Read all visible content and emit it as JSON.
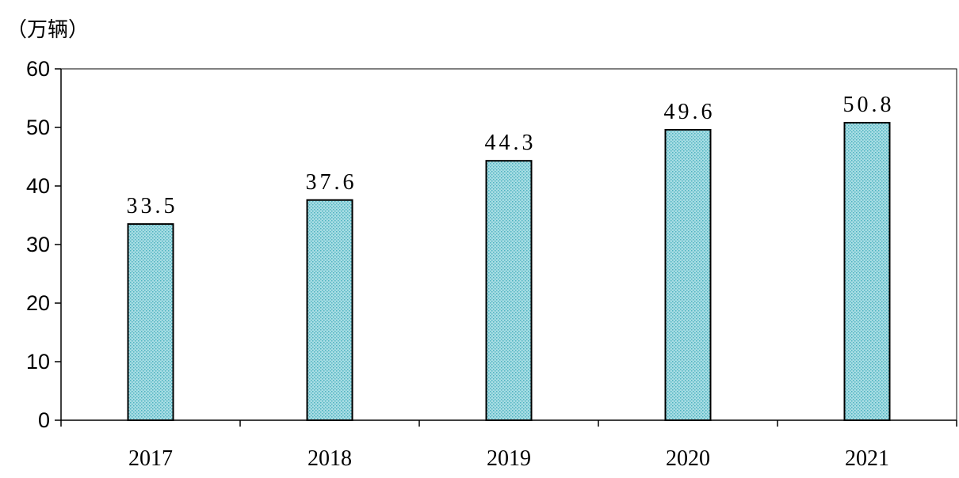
{
  "chart_data": {
    "type": "bar",
    "unit_label": "（万辆）",
    "categories": [
      "2017",
      "2018",
      "2019",
      "2020",
      "2021"
    ],
    "values": [
      33.5,
      37.6,
      44.3,
      49.6,
      50.8
    ],
    "data_labels": [
      "33.5",
      "37.6",
      "44.3",
      "49.6",
      "50.8"
    ],
    "yticks": [
      "0",
      "10",
      "20",
      "30",
      "40",
      "50",
      "60"
    ],
    "ylim": [
      0,
      60
    ],
    "grid": false,
    "colors": {
      "bar_fill": "#a8dde4",
      "bar_dot": "#4fb3c0",
      "bar_stroke": "#000000"
    }
  }
}
